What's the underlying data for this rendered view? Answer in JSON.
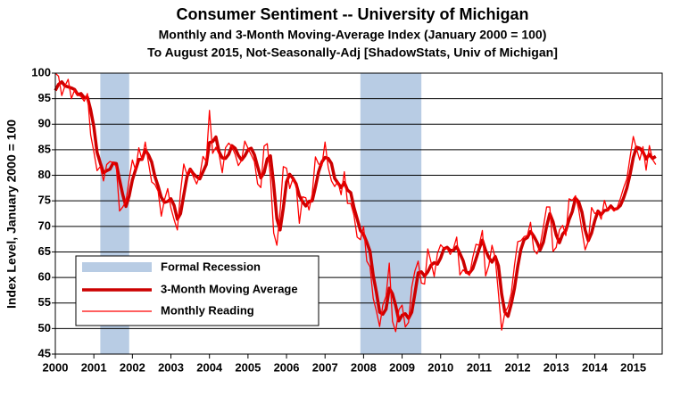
{
  "chart_data": {
    "type": "line",
    "title": "Consumer Sentiment -- University of Michigan",
    "subtitle": [
      "Monthly and 3-Month Moving-Average Index (January 2000 = 100)",
      "To August 2015, Not-Seasonally-Adj [ShadowStats, Univ of Michigan]"
    ],
    "y_label": "Index Level, January 2000 = 100",
    "xlim": [
      2000,
      2015.75
    ],
    "xticks": [
      2000,
      2001,
      2002,
      2003,
      2004,
      2005,
      2006,
      2007,
      2008,
      2009,
      2010,
      2011,
      2012,
      2013,
      2014,
      2015
    ],
    "ylim": [
      45,
      100
    ],
    "yticks": [
      45,
      50,
      55,
      60,
      65,
      70,
      75,
      80,
      85,
      90,
      95,
      100
    ],
    "grid": true,
    "recession_label": "Formal Recession",
    "recession_color": "#b8cce4",
    "recessions": [
      [
        2001.167,
        2001.917
      ],
      [
        2007.917,
        2009.5
      ]
    ],
    "x": [
      2000,
      2000.083,
      2000.167,
      2000.25,
      2000.333,
      2000.417,
      2000.5,
      2000.583,
      2000.667,
      2000.75,
      2000.833,
      2000.917,
      2001,
      2001.083,
      2001.167,
      2001.25,
      2001.333,
      2001.417,
      2001.5,
      2001.583,
      2001.667,
      2001.75,
      2001.833,
      2001.917,
      2002,
      2002.083,
      2002.167,
      2002.25,
      2002.333,
      2002.417,
      2002.5,
      2002.583,
      2002.667,
      2002.75,
      2002.833,
      2002.917,
      2003,
      2003.083,
      2003.167,
      2003.25,
      2003.333,
      2003.417,
      2003.5,
      2003.583,
      2003.667,
      2003.75,
      2003.833,
      2003.917,
      2004,
      2004.083,
      2004.167,
      2004.25,
      2004.333,
      2004.417,
      2004.5,
      2004.583,
      2004.667,
      2004.75,
      2004.833,
      2004.917,
      2005,
      2005.083,
      2005.167,
      2005.25,
      2005.333,
      2005.417,
      2005.5,
      2005.583,
      2005.667,
      2005.75,
      2005.833,
      2005.917,
      2006,
      2006.083,
      2006.167,
      2006.25,
      2006.333,
      2006.417,
      2006.5,
      2006.583,
      2006.667,
      2006.75,
      2006.833,
      2006.917,
      2007,
      2007.083,
      2007.167,
      2007.25,
      2007.333,
      2007.417,
      2007.5,
      2007.583,
      2007.667,
      2007.75,
      2007.833,
      2007.917,
      2008,
      2008.083,
      2008.167,
      2008.25,
      2008.333,
      2008.417,
      2008.5,
      2008.583,
      2008.667,
      2008.75,
      2008.833,
      2008.917,
      2009,
      2009.083,
      2009.167,
      2009.25,
      2009.333,
      2009.417,
      2009.5,
      2009.583,
      2009.667,
      2009.75,
      2009.833,
      2009.917,
      2010,
      2010.083,
      2010.167,
      2010.25,
      2010.333,
      2010.417,
      2010.5,
      2010.583,
      2010.667,
      2010.75,
      2010.833,
      2010.917,
      2011,
      2011.083,
      2011.167,
      2011.25,
      2011.333,
      2011.417,
      2011.5,
      2011.583,
      2011.667,
      2011.75,
      2011.833,
      2011.917,
      2012,
      2012.083,
      2012.167,
      2012.25,
      2012.333,
      2012.417,
      2012.5,
      2012.583,
      2012.667,
      2012.75,
      2012.833,
      2012.917,
      2013,
      2013.083,
      2013.167,
      2013.25,
      2013.333,
      2013.417,
      2013.5,
      2013.583,
      2013.667,
      2013.75,
      2013.833,
      2013.917,
      2014,
      2014.083,
      2014.167,
      2014.25,
      2014.333,
      2014.417,
      2014.5,
      2014.583,
      2014.667,
      2014.75,
      2014.833,
      2014.917,
      2015,
      2015.083,
      2015.167,
      2015.25,
      2015.333,
      2015.417,
      2015.5,
      2015.583
    ],
    "series": [
      {
        "name": "3-Month Moving Average",
        "color": "#cc0000",
        "width": 3.5,
        "values": [
          96.6,
          97.8,
          98.3,
          97.5,
          97.3,
          97.1,
          96.8,
          95.8,
          96.0,
          95.2,
          95.3,
          92.8,
          89.5,
          84.5,
          82.4,
          80.5,
          80.9,
          81.2,
          82.4,
          82.3,
          79.1,
          76.2,
          73.9,
          76.0,
          79.1,
          81.1,
          83.1,
          83.1,
          85.0,
          84.0,
          82.6,
          79.8,
          77.9,
          75.7,
          74.7,
          74.9,
          75.4,
          74.1,
          71.4,
          72.5,
          76.1,
          79.7,
          81.2,
          80.3,
          79.7,
          79.3,
          80.7,
          82.1,
          86.4,
          86.6,
          87.5,
          84.6,
          83.4,
          83.3,
          84.1,
          85.8,
          85.3,
          83.9,
          83.0,
          83.8,
          85.0,
          85.3,
          84.0,
          81.7,
          79.5,
          80.5,
          83.2,
          83.8,
          78.2,
          71.5,
          69.3,
          73.6,
          78.7,
          80.2,
          79.4,
          78.3,
          76.0,
          74.8,
          74.0,
          74.9,
          75.0,
          77.7,
          80.7,
          82.6,
          83.5,
          83.3,
          82.3,
          79.4,
          78.5,
          77.6,
          78.6,
          77.1,
          76.6,
          73.7,
          71.5,
          69.2,
          68.4,
          66.9,
          65.1,
          60.4,
          57.1,
          53.2,
          52.8,
          53.8,
          57.9,
          56.8,
          54.5,
          51.5,
          52.6,
          52.9,
          52.0,
          53.2,
          56.9,
          60.9,
          61.1,
          60.3,
          61.1,
          62.4,
          62.9,
          62.6,
          63.8,
          65.6,
          65.9,
          65.3,
          65.3,
          66.0,
          64.7,
          63.3,
          61.0,
          60.9,
          61.7,
          63.6,
          65.6,
          67.3,
          65.3,
          63.9,
          63.0,
          64.1,
          62.3,
          56.8,
          53.2,
          52.4,
          54.8,
          57.9,
          62.1,
          65.5,
          67.4,
          67.8,
          69.0,
          68.1,
          66.9,
          65.4,
          66.9,
          70.0,
          72.5,
          70.9,
          68.3,
          66.8,
          68.5,
          69.2,
          71.3,
          72.9,
          75.5,
          74.8,
          72.8,
          69.3,
          67.2,
          68.7,
          71.1,
          73.0,
          72.3,
          73.1,
          73.2,
          74.0,
          73.3,
          73.5,
          74.1,
          75.6,
          77.5,
          80.2,
          83.5,
          85.5,
          85.3,
          84.6,
          83.2,
          84.1,
          83.3,
          83.7
        ]
      },
      {
        "name": "Monthly Reading",
        "color": "#ff0000",
        "width": 1.3,
        "values": [
          100.0,
          99.4,
          95.6,
          97.5,
          98.8,
          95.0,
          96.7,
          95.8,
          95.4,
          94.5,
          96.0,
          87.9,
          84.6,
          80.9,
          81.7,
          78.9,
          82.1,
          82.7,
          82.5,
          81.7,
          73.0,
          73.8,
          74.9,
          79.3,
          83.0,
          81.0,
          85.4,
          83.0,
          86.5,
          82.5,
          78.7,
          78.2,
          76.9,
          72.0,
          75.2,
          77.4,
          73.6,
          71.3,
          69.3,
          76.8,
          82.2,
          80.1,
          81.2,
          79.7,
          78.3,
          80.0,
          83.7,
          82.7,
          92.7,
          84.3,
          85.5,
          84.1,
          80.5,
          85.4,
          86.3,
          85.6,
          84.1,
          81.9,
          82.9,
          86.7,
          85.3,
          84.0,
          82.7,
          78.3,
          77.6,
          85.7,
          86.2,
          79.6,
          68.7,
          66.3,
          72.9,
          81.7,
          81.4,
          77.4,
          79.4,
          78.0,
          70.6,
          75.8,
          75.6,
          73.2,
          76.3,
          83.6,
          82.2,
          81.9,
          86.5,
          81.5,
          78.9,
          77.8,
          78.8,
          76.2,
          80.7,
          74.5,
          74.5,
          72.2,
          67.9,
          67.4,
          70.0,
          63.2,
          62.1,
          55.9,
          53.4,
          50.4,
          54.6,
          56.3,
          62.8,
          51.4,
          49.4,
          53.7,
          54.6,
          50.3,
          51.2,
          58.1,
          61.3,
          63.2,
          58.9,
          58.7,
          65.6,
          63.0,
          60.2,
          64.7,
          66.4,
          65.7,
          65.7,
          64.5,
          65.7,
          67.9,
          60.5,
          61.5,
          60.9,
          60.4,
          63.9,
          66.5,
          66.3,
          69.2,
          60.3,
          62.3,
          66.3,
          63.8,
          56.9,
          49.7,
          53.1,
          54.3,
          56.9,
          62.4,
          67.0,
          67.2,
          68.0,
          68.2,
          70.8,
          65.4,
          64.6,
          66.3,
          69.9,
          73.8,
          73.8,
          65.1,
          65.9,
          69.3,
          70.2,
          68.2,
          75.4,
          75.1,
          76.0,
          73.3,
          69.2,
          65.4,
          67.1,
          73.7,
          72.5,
          72.9,
          71.4,
          75.1,
          73.1,
          73.7,
          73.0,
          73.7,
          75.5,
          77.6,
          79.3,
          83.6,
          87.6,
          85.2,
          83.0,
          85.6,
          81.0,
          85.8,
          83.1,
          82.1
        ]
      }
    ]
  }
}
